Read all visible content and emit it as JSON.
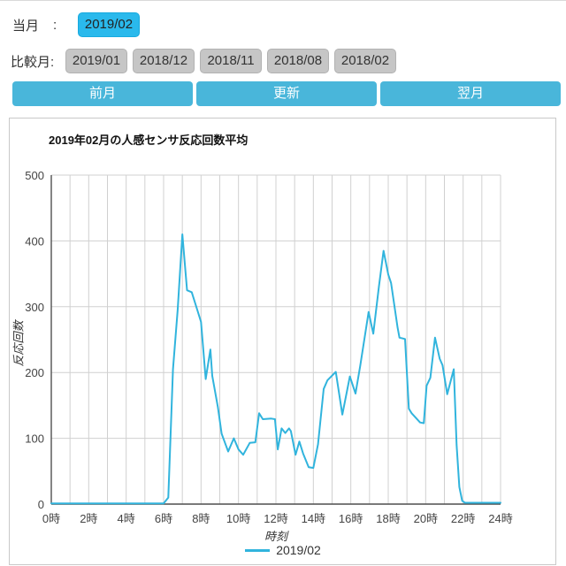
{
  "header": {
    "current_month_label": "当月",
    "current_month_separator": ":",
    "current_month_value": "2019/02",
    "compare_label": "比較月:",
    "compare_months": [
      "2019/01",
      "2018/12",
      "2018/11",
      "2018/08",
      "2018/02"
    ],
    "nav_buttons": [
      {
        "label": "前月"
      },
      {
        "label": "更新"
      },
      {
        "label": "翌月"
      }
    ]
  },
  "colors": {
    "nav_button_blue": "#49b6da",
    "selected_month_cyan": "#2ab9ec",
    "compare_button_gray": "#c6c6c6",
    "series_line": "#31b4dd",
    "grid_line": "#d0d0d0",
    "axis_line": "#4f4f4f"
  },
  "chart_data": {
    "type": "line",
    "title": "2019年02月の人感センサ反応回数平均",
    "xlabel": "時刻",
    "ylabel": "反応回数",
    "xlim": [
      0,
      24
    ],
    "ylim": [
      0,
      500
    ],
    "x_tick_hours": [
      0,
      2,
      4,
      6,
      8,
      10,
      12,
      14,
      16,
      18,
      20,
      22,
      24
    ],
    "x_tick_labels": [
      "0時",
      "2時",
      "4時",
      "6時",
      "8時",
      "10時",
      "12時",
      "14時",
      "16時",
      "18時",
      "20時",
      "22時",
      "24時"
    ],
    "y_ticks": [
      0,
      100,
      200,
      300,
      400,
      500
    ],
    "grid": {
      "vertical_step_hours": 1,
      "horizontal_step": 100
    },
    "legend": {
      "position": "bottom",
      "entries": [
        "2019/02"
      ]
    },
    "series": [
      {
        "name": "2019/02",
        "color": "#31b4dd",
        "points_hour_value": [
          [
            0,
            1
          ],
          [
            6,
            1
          ],
          [
            6.25,
            10
          ],
          [
            6.5,
            205
          ],
          [
            6.75,
            295
          ],
          [
            7,
            410
          ],
          [
            7.25,
            325
          ],
          [
            7.5,
            322
          ],
          [
            7.8,
            295
          ],
          [
            8,
            277
          ],
          [
            8.25,
            190
          ],
          [
            8.5,
            235
          ],
          [
            8.6,
            195
          ],
          [
            8.9,
            147
          ],
          [
            9.1,
            107
          ],
          [
            9.45,
            80
          ],
          [
            9.75,
            100
          ],
          [
            10,
            83
          ],
          [
            10.25,
            75
          ],
          [
            10.6,
            93
          ],
          [
            10.9,
            94
          ],
          [
            11.1,
            138
          ],
          [
            11.3,
            129
          ],
          [
            11.75,
            130
          ],
          [
            11.95,
            129
          ],
          [
            12.1,
            83
          ],
          [
            12.3,
            115
          ],
          [
            12.5,
            108
          ],
          [
            12.7,
            115
          ],
          [
            12.8,
            111
          ],
          [
            13.05,
            75
          ],
          [
            13.25,
            95
          ],
          [
            13.45,
            77
          ],
          [
            13.75,
            56
          ],
          [
            14,
            55
          ],
          [
            14.25,
            91
          ],
          [
            14.55,
            175
          ],
          [
            14.75,
            188
          ],
          [
            15.2,
            201
          ],
          [
            15.55,
            136
          ],
          [
            15.95,
            194
          ],
          [
            16.25,
            168
          ],
          [
            16.5,
            210
          ],
          [
            16.95,
            292
          ],
          [
            17.2,
            259
          ],
          [
            17.5,
            330
          ],
          [
            17.75,
            385
          ],
          [
            18,
            349
          ],
          [
            18.15,
            336
          ],
          [
            18.5,
            268
          ],
          [
            18.6,
            253
          ],
          [
            18.9,
            251
          ],
          [
            19.1,
            145
          ],
          [
            19.25,
            138
          ],
          [
            19.7,
            124
          ],
          [
            19.9,
            123
          ],
          [
            20.05,
            180
          ],
          [
            20.25,
            192
          ],
          [
            20.5,
            253
          ],
          [
            20.75,
            221
          ],
          [
            20.9,
            211
          ],
          [
            21.15,
            167
          ],
          [
            21.5,
            205
          ],
          [
            21.65,
            90
          ],
          [
            21.8,
            26
          ],
          [
            21.95,
            5
          ],
          [
            22.1,
            2
          ],
          [
            24,
            2
          ]
        ]
      }
    ]
  }
}
